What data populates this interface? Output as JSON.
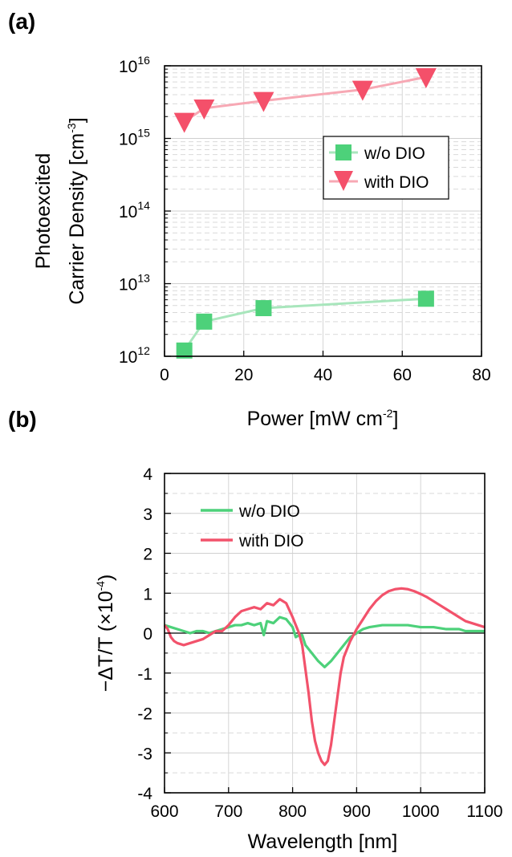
{
  "chart_data": [
    {
      "type": "scatter",
      "panel_label": "(a)",
      "xlabel": "Power [mW cm",
      "xlabel_sup": "-2",
      "xlabel_end": "]",
      "ylabel_line1": "Photoexcited",
      "ylabel_line2": "Carrier Density [cm",
      "ylabel_sup": "-3",
      "ylabel_end": "]",
      "xlim": [
        0,
        80
      ],
      "ylim": [
        1000000000000.0,
        1e+16
      ],
      "yscale": "log",
      "x_ticks": [
        "0",
        "20",
        "40",
        "60",
        "80"
      ],
      "y_ticks": [
        {
          "base": "10",
          "exp": "12"
        },
        {
          "base": "10",
          "exp": "13"
        },
        {
          "base": "10",
          "exp": "14"
        },
        {
          "base": "10",
          "exp": "15"
        },
        {
          "base": "10",
          "exp": "16"
        }
      ],
      "grid": true,
      "legend_position": "center-right",
      "series": [
        {
          "name": "w/o DIO",
          "marker": "square",
          "color": "#4dd17a",
          "line_color": "#a8e6bc",
          "x": [
            5,
            10,
            25,
            66
          ],
          "y": [
            1200000000000.0,
            3000000000000.0,
            4600000000000.0,
            6200000000000.0
          ]
        },
        {
          "name": "with DIO",
          "marker": "triangle-down",
          "color": "#f4506a",
          "line_color": "#f7a8b4",
          "x": [
            5,
            10,
            25,
            50,
            66
          ],
          "y": [
            1700000000000000.0,
            2600000000000000.0,
            3300000000000000.0,
            4700000000000000.0,
            7000000000000000.0
          ]
        }
      ]
    },
    {
      "type": "line",
      "panel_label": "(b)",
      "xlabel": "Wavelength [nm]",
      "ylabel": "−ΔT/T  (×10",
      "ylabel_sup": "-4",
      "ylabel_end": ")",
      "xlim": [
        600,
        1100
      ],
      "ylim": [
        -4,
        4
      ],
      "x_ticks": [
        "600",
        "700",
        "800",
        "900",
        "1000",
        "1100"
      ],
      "y_ticks": [
        "-4",
        "-3",
        "-2",
        "-1",
        "0",
        "1",
        "2",
        "3",
        "4"
      ],
      "grid": true,
      "legend_position": "top-left",
      "series": [
        {
          "name": "w/o DIO",
          "color": "#4dd17a",
          "x": [
            600,
            610,
            620,
            630,
            640,
            650,
            660,
            670,
            680,
            690,
            700,
            710,
            720,
            730,
            740,
            750,
            755,
            760,
            770,
            780,
            790,
            800,
            805,
            810,
            815,
            820,
            830,
            840,
            850,
            860,
            870,
            880,
            890,
            900,
            910,
            920,
            940,
            960,
            980,
            1000,
            1020,
            1040,
            1060,
            1070,
            1080,
            1100
          ],
          "y": [
            0.2,
            0.15,
            0.1,
            0.05,
            0.0,
            0.05,
            0.05,
            0.0,
            0.05,
            0.1,
            0.15,
            0.2,
            0.2,
            0.25,
            0.2,
            0.25,
            -0.05,
            0.3,
            0.25,
            0.4,
            0.35,
            0.15,
            -0.1,
            -0.05,
            -0.05,
            -0.3,
            -0.5,
            -0.7,
            -0.85,
            -0.7,
            -0.5,
            -0.3,
            -0.1,
            0.0,
            0.1,
            0.15,
            0.2,
            0.2,
            0.2,
            0.15,
            0.15,
            0.1,
            0.1,
            0.05,
            0.05,
            0.05
          ]
        },
        {
          "name": "with DIO",
          "color": "#f2526b",
          "x": [
            600,
            605,
            610,
            615,
            620,
            630,
            640,
            650,
            660,
            670,
            680,
            690,
            700,
            710,
            720,
            730,
            740,
            750,
            760,
            770,
            780,
            790,
            800,
            810,
            815,
            820,
            825,
            830,
            835,
            840,
            845,
            850,
            855,
            860,
            865,
            870,
            875,
            880,
            890,
            900,
            910,
            920,
            930,
            940,
            950,
            960,
            970,
            980,
            990,
            1000,
            1010,
            1020,
            1030,
            1040,
            1050,
            1060,
            1070,
            1080,
            1090,
            1100
          ],
          "y": [
            0.2,
            0.1,
            -0.1,
            -0.2,
            -0.25,
            -0.3,
            -0.25,
            -0.2,
            -0.15,
            -0.05,
            0.05,
            0.05,
            0.2,
            0.4,
            0.55,
            0.6,
            0.65,
            0.6,
            0.75,
            0.7,
            0.85,
            0.75,
            0.4,
            0.0,
            -0.3,
            -0.9,
            -1.5,
            -2.2,
            -2.7,
            -3.0,
            -3.2,
            -3.3,
            -3.2,
            -2.8,
            -2.2,
            -1.6,
            -1.0,
            -0.6,
            -0.2,
            0.1,
            0.35,
            0.6,
            0.8,
            0.95,
            1.05,
            1.1,
            1.12,
            1.1,
            1.05,
            0.98,
            0.9,
            0.8,
            0.7,
            0.6,
            0.5,
            0.4,
            0.3,
            0.25,
            0.2,
            0.15
          ]
        }
      ]
    }
  ]
}
